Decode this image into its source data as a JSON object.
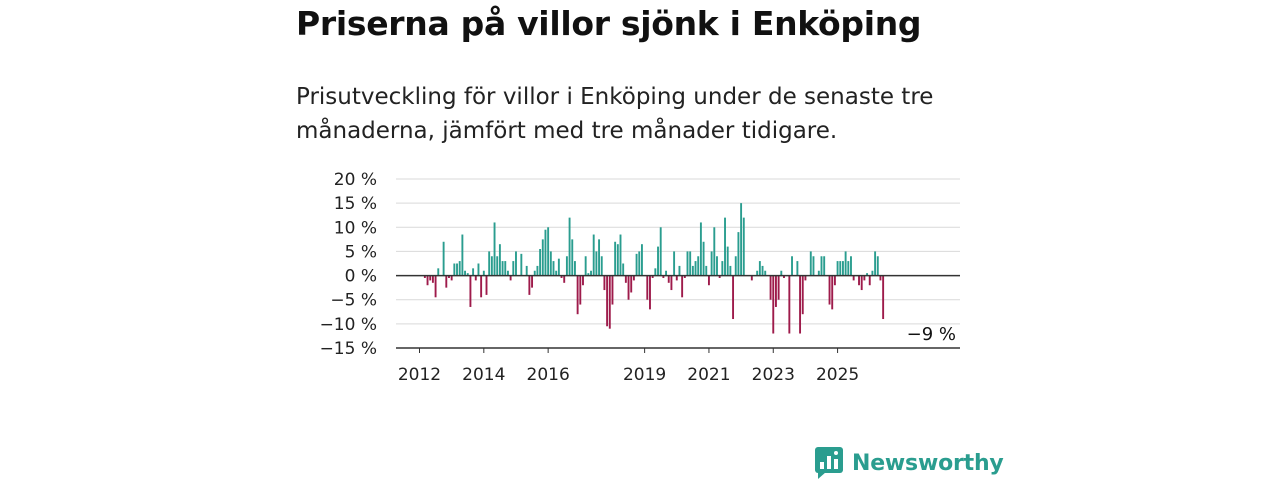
{
  "header": {
    "title": "Priserna på villor sjönk i Enköping",
    "subtitle": "Prisutveckling för villor i Enköping under de senaste tre månaderna, jämfört med tre månader tidigare."
  },
  "brand": {
    "name": "Newsworthy",
    "color": "#2a9d8f",
    "icon": "chart-speech-bubble-icon"
  },
  "chart_data": {
    "type": "bar",
    "x_unit": "month",
    "x_start": "2012-01",
    "values": [
      0,
      0,
      -0.5,
      -2,
      -1,
      -1.5,
      -4.5,
      1.5,
      0,
      7,
      -2.5,
      -0.5,
      -1,
      2.5,
      2.5,
      3,
      8.5,
      1,
      0.5,
      -6.5,
      1.5,
      -1,
      2.5,
      -4.5,
      1,
      -4,
      5,
      4,
      11,
      4,
      6.5,
      3,
      3,
      1,
      -1,
      3,
      5,
      0,
      4.5,
      0,
      2,
      -4,
      -2.5,
      1,
      2,
      5.5,
      7.5,
      9.5,
      10,
      5,
      3,
      1,
      3.5,
      -0.5,
      -1.5,
      4,
      12,
      7.5,
      3,
      -8,
      -6,
      -2,
      4,
      0.5,
      1,
      8.5,
      5,
      7.5,
      4,
      -3,
      -10.5,
      -11,
      -6,
      7,
      6.5,
      8.5,
      2.5,
      -1.5,
      -5,
      -3.5,
      -1,
      4.5,
      5,
      6.5,
      0,
      -5,
      -7,
      -0.5,
      1.5,
      6,
      10,
      -0.5,
      1,
      -1.5,
      -3,
      5,
      -1,
      2,
      -4.5,
      -0.5,
      5,
      5,
      2,
      3,
      4,
      11,
      7,
      2,
      -2,
      5,
      10,
      4,
      -0.5,
      3,
      12,
      6,
      2,
      -9,
      4,
      9,
      15,
      12,
      0,
      0,
      -1,
      0,
      1,
      3,
      2,
      1,
      0,
      -5,
      -12,
      -6.5,
      -5,
      1,
      -0.5,
      0,
      -12,
      4,
      0,
      3,
      -12,
      -8,
      -1,
      0,
      5,
      4,
      0,
      1,
      4,
      4,
      0,
      -6,
      -7,
      -2,
      3,
      3,
      3,
      5,
      3,
      4,
      -1,
      0,
      -2,
      -3,
      -1,
      0.5,
      -2,
      1,
      5,
      4,
      -1,
      -9
    ],
    "ylim": [
      -15,
      20
    ],
    "yticks": [
      20,
      15,
      10,
      5,
      0,
      -5,
      -10,
      -15
    ],
    "ytick_labels": [
      "20 %",
      "15 %",
      "10 %",
      "5 %",
      "0 %",
      "−5 %",
      "−10 %",
      "−15 %"
    ],
    "xtick_labels": [
      "2012",
      "2014",
      "2016",
      "2019",
      "2021",
      "2023",
      "2025"
    ],
    "xtick_dates": [
      "2012-01",
      "2014-01",
      "2016-01",
      "2019-01",
      "2021-01",
      "2023-01",
      "2025-01"
    ],
    "grid": true,
    "colors": {
      "positive": "#2a9d8f",
      "negative": "#9e1b4b",
      "grid": "#d9d9d9",
      "axis": "#333333"
    },
    "annotation": {
      "text": "−9 %",
      "x": "2025-08"
    }
  }
}
